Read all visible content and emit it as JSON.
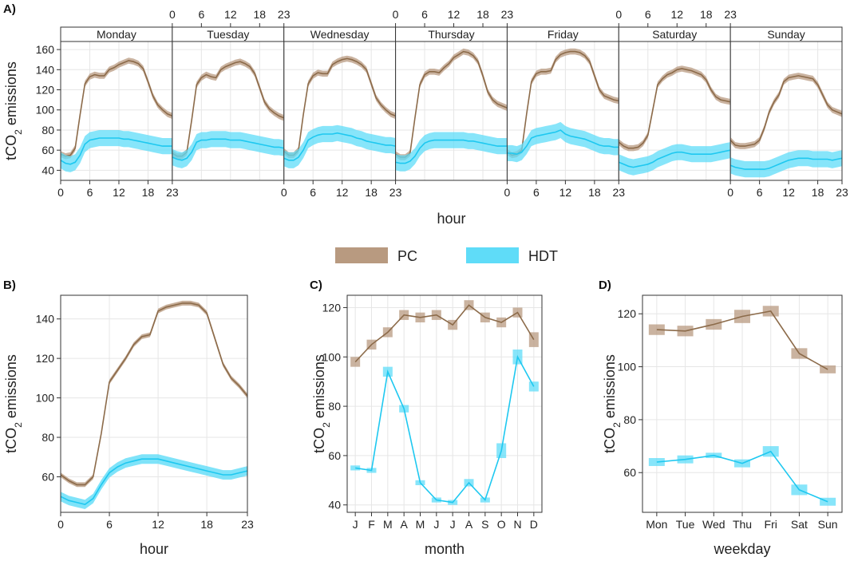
{
  "colors": {
    "pc": "#8c6b4a",
    "pc_band": "#b89a80",
    "hdt": "#1ec8f0",
    "hdt_band": "#5fdcf8",
    "grid": "#e6e6e6",
    "frame": "#333333",
    "strip_bg": "#ffffff"
  },
  "legend": {
    "items": [
      {
        "key": "pc",
        "label": "PC"
      },
      {
        "key": "hdt",
        "label": "HDT"
      }
    ]
  },
  "panel_labels": {
    "a": "A)",
    "b": "B)",
    "c": "C)",
    "d": "D)"
  },
  "chart_data": [
    {
      "id": "A",
      "type": "area",
      "title": "",
      "xlabel": "hour",
      "ylabel": "tCO2 emissions",
      "ylabel_main": "tCO",
      "ylabel_sub": "2",
      "ylabel_rest": " emissions",
      "xlim": [
        0,
        23
      ],
      "ylim": [
        30,
        168
      ],
      "yticks": [
        40,
        60,
        80,
        100,
        120,
        140,
        160
      ],
      "xticks": [
        0,
        6,
        12,
        18,
        23
      ],
      "facets": [
        "Monday",
        "Tuesday",
        "Wednesday",
        "Thursday",
        "Friday",
        "Saturday",
        "Sunday"
      ],
      "band_width": {
        "PC": 3,
        "HDT": 8
      },
      "series": [
        {
          "name": "PC",
          "facets": [
            [
              56,
              54,
              55,
              62,
              95,
              126,
              133,
              135,
              134,
              134,
              140,
              142,
              145,
              147,
              149,
              148,
              146,
              141,
              128,
              114,
              105,
              100,
              96,
              94
            ],
            [
              57,
              54,
              54,
              58,
              90,
              125,
              132,
              135,
              133,
              132,
              140,
              143,
              145,
              147,
              148,
              146,
              143,
              136,
              122,
              108,
              101,
              97,
              94,
              92
            ],
            [
              59,
              55,
              55,
              60,
              95,
              126,
              134,
              137,
              136,
              136,
              145,
              148,
              150,
              151,
              150,
              148,
              145,
              140,
              126,
              112,
              105,
              100,
              96,
              94
            ],
            [
              56,
              53,
              53,
              57,
              92,
              125,
              135,
              138,
              138,
              137,
              142,
              146,
              152,
              155,
              158,
              157,
              154,
              148,
              134,
              118,
              110,
              106,
              104,
              102
            ],
            [
              58,
              55,
              56,
              60,
              96,
              128,
              136,
              138,
              138,
              139,
              150,
              155,
              157,
              158,
              158,
              157,
              154,
              148,
              134,
              120,
              114,
              112,
              110,
              109
            ],
            [
              68,
              64,
              62,
              62,
              63,
              67,
              75,
              100,
              125,
              131,
              135,
              137,
              140,
              141,
              140,
              139,
              137,
              135,
              130,
              120,
              113,
              110,
              109,
              108
            ],
            [
              70,
              65,
              64,
              64,
              65,
              66,
              70,
              82,
              98,
              108,
              115,
              128,
              132,
              133,
              134,
              133,
              132,
              131,
              125,
              115,
              105,
              100,
              98,
              96
            ]
          ]
        },
        {
          "name": "HDT",
          "facets": [
            [
              50,
              47,
              46,
              48,
              55,
              66,
              70,
              71,
              72,
              72,
              72,
              72,
              72,
              71,
              71,
              70,
              69,
              68,
              67,
              66,
              65,
              64,
              64,
              64
            ],
            [
              53,
              51,
              50,
              52,
              58,
              68,
              70,
              70,
              71,
              71,
              71,
              71,
              70,
              70,
              70,
              69,
              68,
              67,
              66,
              65,
              64,
              63,
              63,
              62
            ],
            [
              52,
              50,
              50,
              53,
              60,
              70,
              73,
              75,
              76,
              76,
              76,
              77,
              76,
              75,
              74,
              72,
              71,
              69,
              68,
              67,
              66,
              65,
              65,
              64
            ],
            [
              48,
              47,
              47,
              49,
              54,
              62,
              67,
              69,
              70,
              70,
              70,
              70,
              70,
              70,
              70,
              69,
              69,
              68,
              67,
              66,
              65,
              64,
              64,
              64
            ],
            [
              57,
              57,
              56,
              58,
              64,
              72,
              74,
              75,
              76,
              77,
              78,
              80,
              76,
              74,
              73,
              72,
              71,
              69,
              67,
              65,
              64,
              64,
              63,
              63
            ],
            [
              48,
              46,
              44,
              43,
              44,
              45,
              46,
              48,
              51,
              53,
              55,
              57,
              58,
              58,
              57,
              56,
              56,
              56,
              56,
              56,
              57,
              58,
              59,
              60
            ],
            [
              45,
              43,
              42,
              41,
              41,
              41,
              41,
              41,
              42,
              44,
              46,
              48,
              50,
              51,
              52,
              52,
              52,
              51,
              51,
              51,
              51,
              50,
              51,
              52
            ]
          ]
        }
      ]
    },
    {
      "id": "B",
      "type": "area",
      "title": "",
      "xlabel": "hour",
      "ylabel": "tCO2 emissions",
      "ylabel_main": "tCO",
      "ylabel_sub": "2",
      "ylabel_rest": " emissions",
      "xlim": [
        0,
        23
      ],
      "ylim": [
        42,
        152
      ],
      "yticks": [
        60,
        80,
        100,
        120,
        140
      ],
      "xticks": [
        0,
        6,
        12,
        18,
        23
      ],
      "band_width": {
        "PC": 1.2,
        "HDT": 2.4
      },
      "x": [
        0,
        1,
        2,
        3,
        4,
        5,
        6,
        7,
        8,
        9,
        10,
        11,
        12,
        13,
        14,
        15,
        16,
        17,
        18,
        19,
        20,
        21,
        22,
        23
      ],
      "series": [
        {
          "name": "PC",
          "values": [
            61,
            58,
            56,
            56,
            60,
            82,
            108,
            114,
            120,
            127,
            131,
            132,
            144,
            146,
            147,
            148,
            148,
            147,
            143,
            130,
            117,
            110,
            106,
            101
          ]
        },
        {
          "name": "HDT",
          "values": [
            50,
            48,
            47,
            46,
            49,
            56,
            62,
            65,
            67,
            68,
            69,
            69,
            69,
            68,
            67,
            66,
            65,
            64,
            63,
            62,
            61,
            61,
            62,
            63
          ]
        }
      ]
    },
    {
      "id": "C",
      "type": "line",
      "title": "",
      "xlabel": "month",
      "ylabel": "tCO2 emissions",
      "ylabel_main": "tCO",
      "ylabel_sub": "2",
      "ylabel_rest": " emissions",
      "ylim": [
        37,
        125
      ],
      "yticks": [
        40,
        60,
        80,
        100,
        120
      ],
      "categories": [
        "J",
        "F",
        "M",
        "A",
        "M",
        "J",
        "J",
        "A",
        "S",
        "O",
        "N",
        "D"
      ],
      "series": [
        {
          "name": "PC",
          "values": [
            98,
            105,
            110,
            117,
            116,
            117,
            113,
            121,
            116,
            114,
            118,
            107
          ],
          "err": [
            2,
            2,
            2,
            2,
            2,
            2,
            2,
            2,
            2,
            2,
            2,
            3
          ]
        },
        {
          "name": "HDT",
          "values": [
            55,
            54,
            94,
            79,
            49,
            42,
            41,
            49,
            42,
            62,
            100,
            88
          ],
          "err": [
            1,
            1,
            2,
            1.5,
            1,
            1,
            1,
            1.5,
            1,
            3,
            3,
            2
          ]
        }
      ]
    },
    {
      "id": "D",
      "type": "line",
      "title": "",
      "xlabel": "weekday",
      "ylabel": "tCO2 emissions",
      "ylabel_main": "tCO",
      "ylabel_sub": "2",
      "ylabel_rest": " emissions",
      "ylim": [
        45,
        127
      ],
      "yticks": [
        60,
        80,
        100,
        120
      ],
      "categories": [
        "Mon",
        "Tue",
        "Wed",
        "Thu",
        "Fri",
        "Sat",
        "Sun"
      ],
      "series": [
        {
          "name": "PC",
          "values": [
            114,
            113.5,
            116,
            119,
            121,
            105,
            99
          ],
          "err": [
            2,
            2,
            2,
            2.5,
            2,
            2,
            1.5
          ]
        },
        {
          "name": "HDT",
          "values": [
            64,
            65,
            66.5,
            63.5,
            68,
            53.5,
            49
          ],
          "err": [
            1.5,
            1.5,
            1,
            1.5,
            2,
            2,
            1.5
          ]
        }
      ]
    }
  ]
}
